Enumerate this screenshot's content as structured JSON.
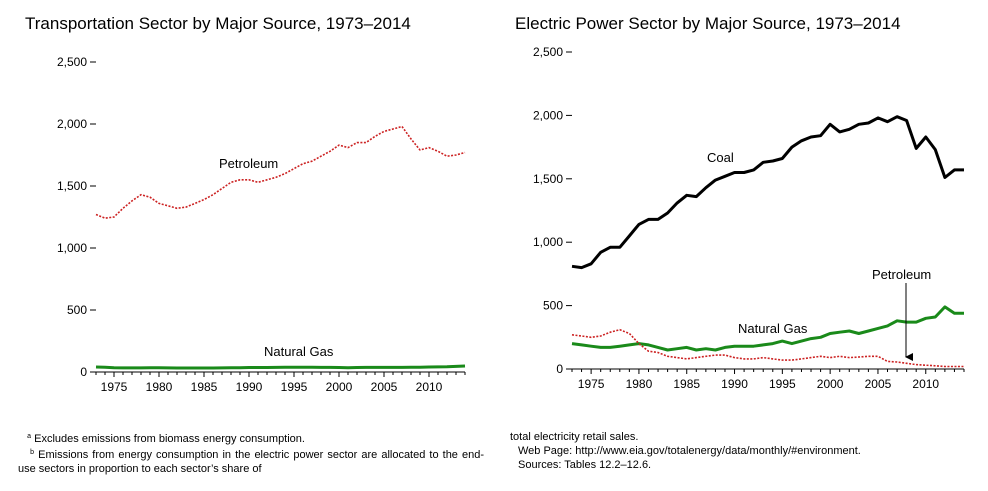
{
  "chart_data": [
    {
      "type": "line",
      "title": "Transportation Sector by Major Source, 1973–2014",
      "ylim": [
        0,
        2500
      ],
      "yticks": [
        0,
        500,
        1000,
        1500,
        2000,
        2500
      ],
      "ytick_labels": [
        "0",
        "500",
        "1,000",
        "1,500",
        "2,000",
        "2,500"
      ],
      "xlim": [
        1973,
        2014
      ],
      "xticks": [
        1975,
        1980,
        1985,
        1990,
        1995,
        2000,
        2005,
        2010
      ],
      "grid": false,
      "x": [
        1973,
        1974,
        1975,
        1976,
        1977,
        1978,
        1979,
        1980,
        1981,
        1982,
        1983,
        1984,
        1985,
        1986,
        1987,
        1988,
        1989,
        1990,
        1991,
        1992,
        1993,
        1994,
        1995,
        1996,
        1997,
        1998,
        1999,
        2000,
        2001,
        2002,
        2003,
        2004,
        2005,
        2006,
        2007,
        2008,
        2009,
        2010,
        2011,
        2012,
        2013,
        2014
      ],
      "series": [
        {
          "name": "Petroleum",
          "color": "#cc2222",
          "style": "dotted",
          "values": [
            1270,
            1240,
            1250,
            1320,
            1380,
            1430,
            1410,
            1360,
            1340,
            1320,
            1330,
            1360,
            1390,
            1430,
            1480,
            1530,
            1550,
            1550,
            1530,
            1550,
            1570,
            1600,
            1640,
            1680,
            1700,
            1740,
            1780,
            1830,
            1810,
            1850,
            1850,
            1900,
            1940,
            1960,
            1980,
            1880,
            1790,
            1810,
            1780,
            1740,
            1750,
            1770
          ]
        },
        {
          "name": "Natural Gas",
          "color": "#1a8a1a",
          "style": "solid",
          "values": [
            40,
            38,
            35,
            33,
            33,
            33,
            34,
            34,
            33,
            32,
            32,
            32,
            32,
            32,
            33,
            34,
            35,
            36,
            36,
            36,
            37,
            38,
            38,
            38,
            38,
            37,
            37,
            36,
            35,
            36,
            37,
            37,
            37,
            37,
            37,
            38,
            38,
            40,
            41,
            42,
            45,
            48
          ]
        }
      ]
    },
    {
      "type": "line",
      "title": "Electric Power Sector by Major Source, 1973–2014",
      "ylim": [
        0,
        2500
      ],
      "yticks": [
        0,
        500,
        1000,
        1500,
        2000,
        2500
      ],
      "ytick_labels": [
        "0",
        "500",
        "1,000",
        "1,500",
        "2,000",
        "2,500"
      ],
      "xlim": [
        1973,
        2014
      ],
      "xticks": [
        1975,
        1980,
        1985,
        1990,
        1995,
        2000,
        2005,
        2010
      ],
      "grid": false,
      "x": [
        1973,
        1974,
        1975,
        1976,
        1977,
        1978,
        1979,
        1980,
        1981,
        1982,
        1983,
        1984,
        1985,
        1986,
        1987,
        1988,
        1989,
        1990,
        1991,
        1992,
        1993,
        1994,
        1995,
        1996,
        1997,
        1998,
        1999,
        2000,
        2001,
        2002,
        2003,
        2004,
        2005,
        2006,
        2007,
        2008,
        2009,
        2010,
        2011,
        2012,
        2013,
        2014
      ],
      "series": [
        {
          "name": "Coal",
          "color": "#000000",
          "style": "solid",
          "values": [
            810,
            800,
            830,
            920,
            960,
            960,
            1050,
            1140,
            1180,
            1180,
            1230,
            1310,
            1370,
            1360,
            1430,
            1490,
            1520,
            1550,
            1550,
            1570,
            1630,
            1640,
            1660,
            1750,
            1800,
            1830,
            1840,
            1930,
            1870,
            1890,
            1930,
            1940,
            1980,
            1950,
            1990,
            1960,
            1740,
            1830,
            1730,
            1510,
            1570,
            1570
          ]
        },
        {
          "name": "Natural Gas",
          "color": "#1a8a1a",
          "style": "solid",
          "values": [
            200,
            190,
            180,
            170,
            170,
            180,
            190,
            200,
            190,
            170,
            150,
            160,
            170,
            150,
            160,
            150,
            170,
            180,
            180,
            180,
            190,
            200,
            220,
            200,
            220,
            240,
            250,
            280,
            290,
            300,
            280,
            300,
            320,
            340,
            380,
            370,
            370,
            400,
            410,
            490,
            440,
            440
          ]
        },
        {
          "name": "Petroleum",
          "color": "#cc2222",
          "style": "dotted",
          "values": [
            270,
            260,
            250,
            260,
            290,
            310,
            280,
            200,
            140,
            130,
            100,
            90,
            80,
            90,
            100,
            110,
            110,
            90,
            80,
            80,
            90,
            80,
            70,
            70,
            80,
            90,
            100,
            90,
            100,
            90,
            95,
            100,
            100,
            60,
            55,
            45,
            35,
            30,
            25,
            20,
            20,
            20
          ]
        }
      ],
      "annotations": [
        {
          "text": "Petroleum",
          "arrow_to": [
            2008,
            45
          ]
        }
      ]
    }
  ],
  "labels": {
    "left_petroleum": "Petroleum",
    "left_natural_gas": "Natural Gas",
    "right_coal": "Coal",
    "right_natural_gas": "Natural Gas",
    "right_petroleum": "Petroleum"
  },
  "footnotes": {
    "a_mark": "a",
    "a_text": " Excludes emissions from biomass energy consumption.",
    "b_mark": "b",
    "b_text": " Emissions from energy consumption in the electric power sector are allocated to the end-use sectors in proportion to each sector’s share of",
    "continued": "total electricity retail sales.",
    "web_page": "Web Page:  http://www.eia.gov/totalenergy/data/monthly/#environment.",
    "sources": "Sources:  Tables 12.2–12.6."
  }
}
